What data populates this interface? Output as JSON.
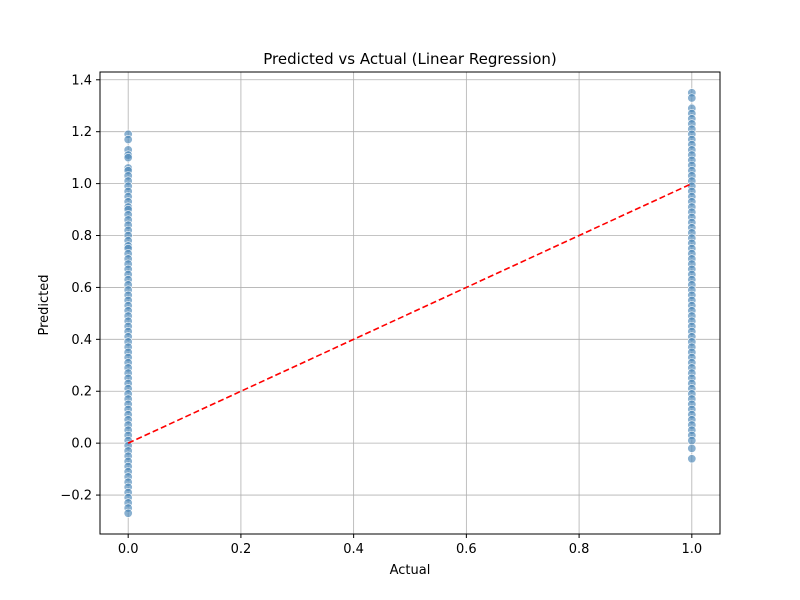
{
  "chart_data": {
    "type": "scatter",
    "title": "Predicted vs Actual (Linear Regression)",
    "xlabel": "Actual",
    "ylabel": "Predicted",
    "xlim": [
      -0.05,
      1.05
    ],
    "ylim": [
      -0.35,
      1.43
    ],
    "xticks": [
      0.0,
      0.2,
      0.4,
      0.6,
      0.8,
      1.0
    ],
    "yticks": [
      -0.2,
      0.0,
      0.2,
      0.4,
      0.6,
      0.8,
      1.0,
      1.2,
      1.4
    ],
    "xtick_labels": [
      "0.0",
      "0.2",
      "0.4",
      "0.6",
      "0.8",
      "1.0"
    ],
    "ytick_labels": [
      "−0.2",
      "0.0",
      "0.2",
      "0.4",
      "0.6",
      "0.8",
      "1.0",
      "1.2",
      "1.4"
    ],
    "grid": true,
    "point_color": "#4c87b8",
    "reference_line": {
      "x": [
        0,
        1
      ],
      "y": [
        0,
        1
      ],
      "color": "#ff0000",
      "style": "dashed"
    },
    "series": [
      {
        "x": 0,
        "y": [
          1.19,
          1.17,
          1.13,
          1.11,
          1.1,
          1.06,
          1.05,
          1.03,
          1.01,
          0.99,
          0.97,
          0.95,
          0.93,
          0.91,
          0.9,
          0.88,
          0.86,
          0.84,
          0.82,
          0.8,
          0.78,
          0.76,
          0.75,
          0.73,
          0.71,
          0.69,
          0.67,
          0.65,
          0.63,
          0.61,
          0.59,
          0.57,
          0.55,
          0.53,
          0.51,
          0.49,
          0.47,
          0.45,
          0.43,
          0.41,
          0.39,
          0.37,
          0.35,
          0.33,
          0.31,
          0.29,
          0.27,
          0.25,
          0.23,
          0.21,
          0.19,
          0.17,
          0.15,
          0.13,
          0.11,
          0.09,
          0.07,
          0.05,
          0.03,
          0.01,
          -0.01,
          -0.03,
          -0.05,
          -0.07,
          -0.09,
          -0.11,
          -0.13,
          -0.15,
          -0.17,
          -0.19,
          -0.21,
          -0.23,
          -0.25,
          -0.27
        ]
      },
      {
        "x": 1,
        "y": [
          1.35,
          1.33,
          1.29,
          1.27,
          1.25,
          1.23,
          1.21,
          1.19,
          1.17,
          1.15,
          1.13,
          1.11,
          1.09,
          1.07,
          1.05,
          1.03,
          1.01,
          0.99,
          0.97,
          0.95,
          0.93,
          0.91,
          0.89,
          0.87,
          0.85,
          0.83,
          0.81,
          0.79,
          0.77,
          0.75,
          0.73,
          0.71,
          0.69,
          0.67,
          0.65,
          0.63,
          0.61,
          0.59,
          0.57,
          0.55,
          0.53,
          0.51,
          0.49,
          0.47,
          0.45,
          0.43,
          0.41,
          0.39,
          0.37,
          0.35,
          0.33,
          0.31,
          0.29,
          0.27,
          0.25,
          0.23,
          0.21,
          0.19,
          0.17,
          0.15,
          0.13,
          0.11,
          0.09,
          0.07,
          0.05,
          0.03,
          0.01,
          -0.02,
          -0.06
        ]
      }
    ]
  }
}
